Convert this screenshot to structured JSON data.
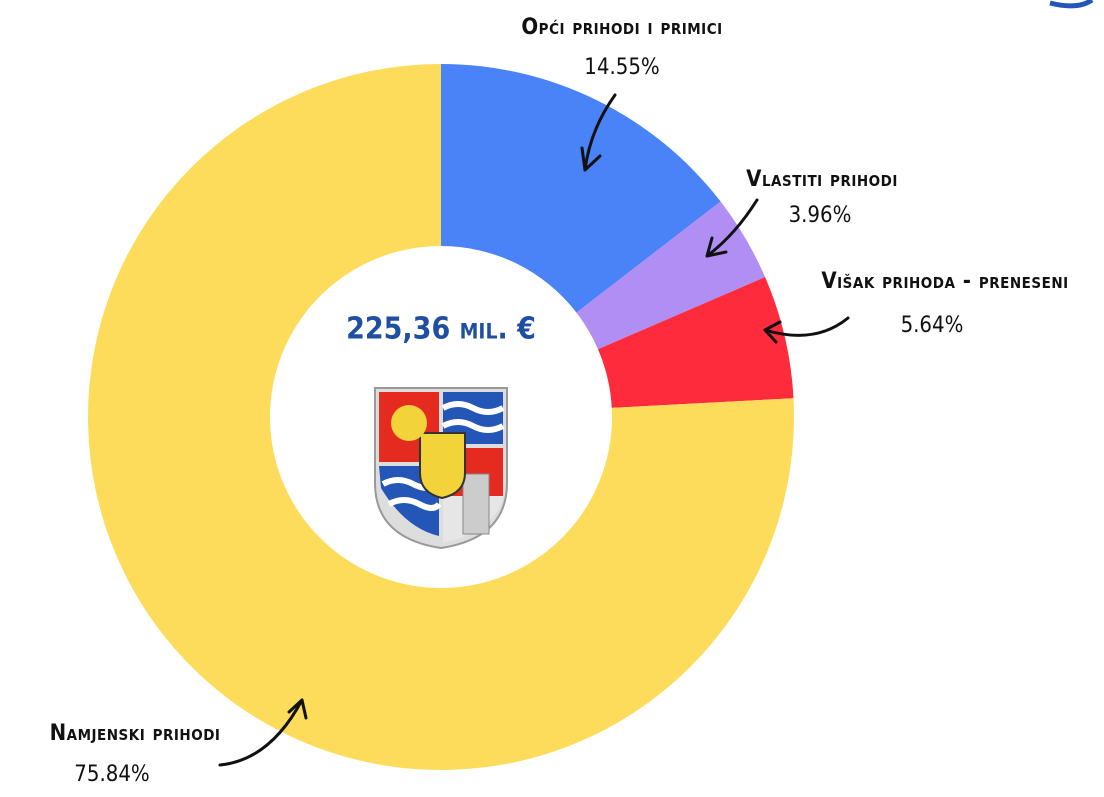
{
  "chart_data": {
    "type": "donut",
    "categories": [
      "Opći prihodi i primici",
      "Vlastiti prihodi",
      "Višak prihoda - preneseni",
      "Namjenski prihodi"
    ],
    "values": [
      14.55,
      3.96,
      5.64,
      75.84
    ],
    "value_labels": [
      "14.55%",
      "3.96%",
      "5.64%",
      "75.84%"
    ],
    "colors": [
      "#4a82f7",
      "#b18ef3",
      "#fd2b3b",
      "#fddc5c"
    ],
    "annotation": "225,36 mil. €"
  }
}
